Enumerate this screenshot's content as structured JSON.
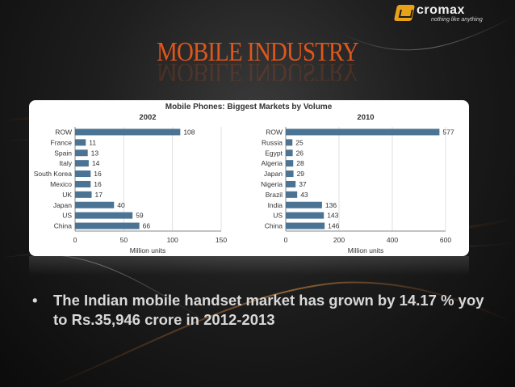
{
  "logo": {
    "brand": "cromax",
    "tagline": "nothing like anything"
  },
  "slide_title": "MOBILE INDUSTRY",
  "chart_data": [
    {
      "type": "bar",
      "orientation": "horizontal",
      "title": "Mobile Phones: Biggest Markets by Volume",
      "subtitle": "2002",
      "categories": [
        "ROW",
        "France",
        "Spain",
        "Italy",
        "South Korea",
        "Mexico",
        "UK",
        "Japan",
        "US",
        "China"
      ],
      "values": [
        108,
        11,
        13,
        14,
        16,
        16,
        17,
        40,
        59,
        66
      ],
      "xlim": [
        0,
        150
      ],
      "xticks": [
        0,
        50,
        100,
        150
      ],
      "xlabel": "Million units",
      "grid": true,
      "color": "#4a7394"
    },
    {
      "type": "bar",
      "orientation": "horizontal",
      "subtitle": "2010",
      "categories": [
        "ROW",
        "Russia",
        "Egypt",
        "Algeria",
        "Japan",
        "Nigeria",
        "Brazil",
        "India",
        "US",
        "China"
      ],
      "values": [
        577,
        25,
        26,
        28,
        29,
        37,
        43,
        136,
        143,
        146
      ],
      "xlim": [
        0,
        600
      ],
      "xticks": [
        0,
        200,
        400,
        600
      ],
      "xlabel": "Million units",
      "grid": true,
      "color": "#4a7394"
    }
  ],
  "bullet": {
    "marker": "•",
    "text": "The Indian mobile handset market has grown by 14.17 % yoy to Rs.35,946 crore in 2012-2013"
  }
}
